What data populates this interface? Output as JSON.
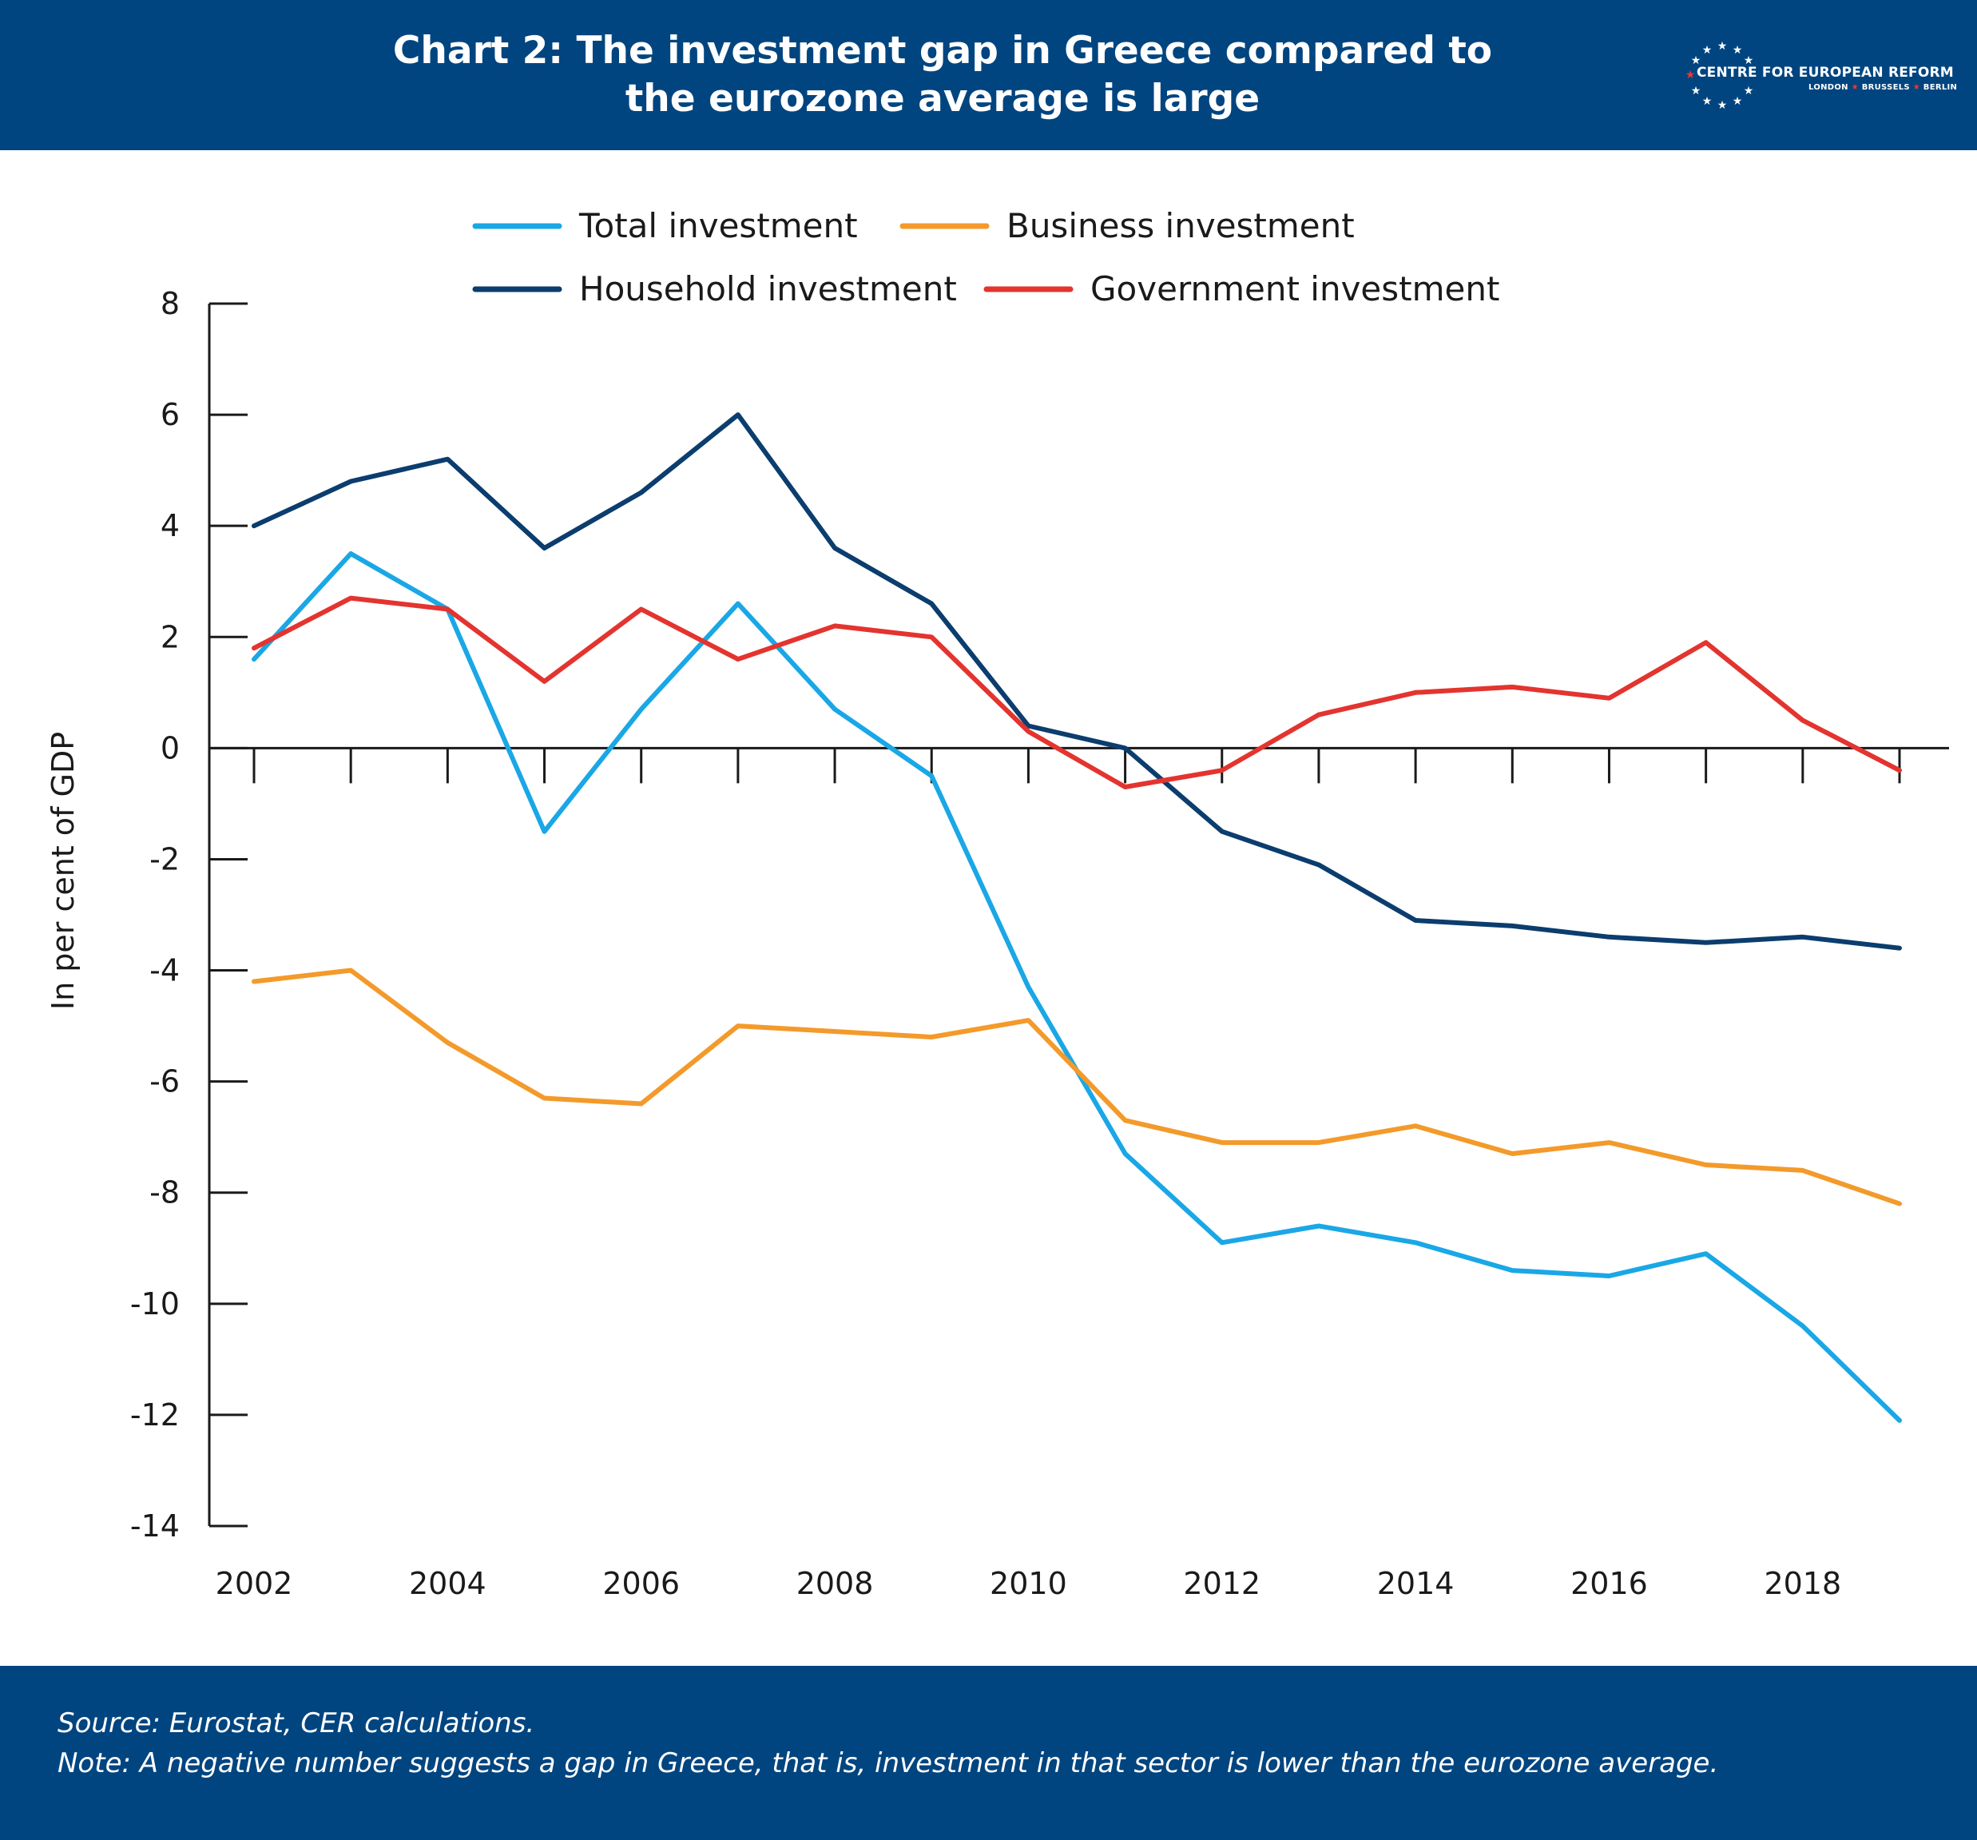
{
  "header": {
    "title_lines": [
      "Chart 2: The investment gap in Greece compared to",
      "the eurozone average is large"
    ],
    "logo": {
      "name": "CENTRE FOR EUROPEAN REFORM",
      "cities": [
        "LONDON",
        "BRUSSELS",
        "BERLIN"
      ]
    }
  },
  "footer": {
    "source": "Source: Eurostat, CER calculations.",
    "note": "Note: A negative number suggests a gap in Greece, that is, investment in that sector is lower than the eurozone average."
  },
  "chart_data": {
    "type": "line",
    "title": "",
    "xlabel": "",
    "ylabel": "In per cent of GDP",
    "x": [
      2002,
      2003,
      2004,
      2005,
      2006,
      2007,
      2008,
      2009,
      2010,
      2011,
      2012,
      2013,
      2014,
      2015,
      2016,
      2017,
      2018,
      2019
    ],
    "x_tick_labels": [
      "2002",
      "2004",
      "2006",
      "2008",
      "2010",
      "2012",
      "2014",
      "2016",
      "2018"
    ],
    "xlim": [
      2002,
      2019
    ],
    "ylim": [
      -14,
      8
    ],
    "y_ticks": [
      8,
      6,
      4,
      2,
      0,
      -2,
      -4,
      -6,
      -8,
      -10,
      -12,
      -14
    ],
    "grid": false,
    "legend_position": "top",
    "series": [
      {
        "name": "Total investment",
        "color": "#1aa7e6",
        "values": [
          1.6,
          3.5,
          2.5,
          -1.5,
          0.7,
          2.6,
          0.7,
          -0.5,
          -4.3,
          -7.3,
          -8.9,
          -8.6,
          -8.9,
          -9.4,
          -9.5,
          -9.1,
          -10.4,
          -12.1
        ]
      },
      {
        "name": "Business investment",
        "color": "#f39a2b",
        "values": [
          -4.2,
          -4.0,
          -5.3,
          -6.3,
          -6.4,
          -5.0,
          -5.1,
          -5.2,
          -4.9,
          -6.7,
          -7.1,
          -7.1,
          -6.8,
          -7.3,
          -7.1,
          -7.5,
          -7.6,
          -8.2
        ]
      },
      {
        "name": "Household investment",
        "color": "#0b3d6e",
        "values": [
          4.0,
          4.8,
          5.2,
          3.6,
          4.6,
          6.0,
          3.6,
          2.6,
          0.4,
          0.0,
          -1.5,
          -2.1,
          -3.1,
          -3.2,
          -3.4,
          -3.5,
          -3.4,
          -3.6
        ]
      },
      {
        "name": "Government investment",
        "color": "#e3342f",
        "values": [
          1.8,
          2.7,
          2.5,
          1.2,
          2.5,
          1.6,
          2.2,
          2.0,
          0.3,
          -0.7,
          -0.4,
          0.6,
          1.0,
          1.1,
          0.9,
          1.9,
          0.5,
          -0.4
        ]
      }
    ]
  }
}
